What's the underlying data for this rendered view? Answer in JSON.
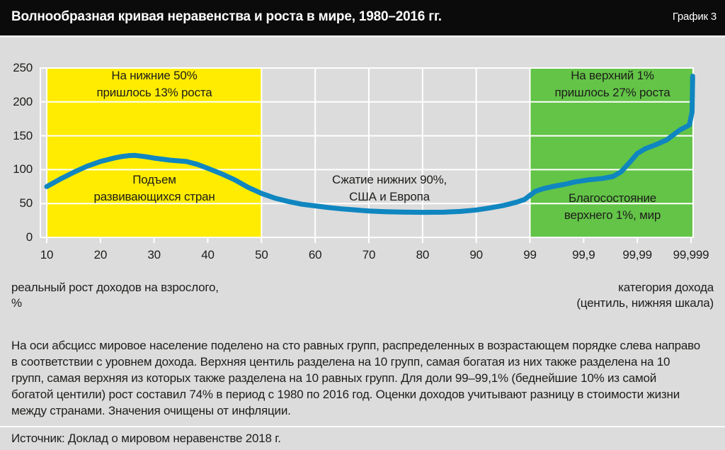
{
  "header": {
    "title": "Волнообразная кривая неравенства и роста в мире, 1980–2016 гг.",
    "corner_label": "График 3"
  },
  "chart_data": {
    "type": "line",
    "title": "Волнообразная кривая неравенства и роста в мире, 1980–2016 гг.",
    "xlabel": "категория дохода (центиль, нижняя шкала)",
    "ylabel": "реальный рост доходов на взрослого, %",
    "ylim": [
      0,
      250
    ],
    "grid": "on, white lines on gray",
    "legend": "none",
    "x_ticks": [
      "10",
      "20",
      "30",
      "40",
      "50",
      "60",
      "70",
      "80",
      "90",
      "99",
      "99,9",
      "99,99",
      "99,999"
    ],
    "y_ticks": [
      "0",
      "50",
      "100",
      "150",
      "200",
      "250"
    ],
    "v_grid_ticks": [
      0,
      4,
      5,
      6,
      7,
      8,
      9
    ],
    "regions": [
      {
        "name": "bottom-50-region",
        "color": "#ffec00",
        "from_tick": 0,
        "to_tick": 4
      },
      {
        "name": "top-1-region",
        "color": "#63c447",
        "from_tick": 9,
        "to_tick": 12.03
      }
    ],
    "series": [
      {
        "name": "реальный рост доходов, %",
        "color": "#0f86c0",
        "points": [
          [
            0,
            75
          ],
          [
            0.25,
            86
          ],
          [
            0.5,
            96
          ],
          [
            0.75,
            105
          ],
          [
            1,
            112
          ],
          [
            1.25,
            117
          ],
          [
            1.4,
            119.5
          ],
          [
            1.55,
            120.8
          ],
          [
            1.65,
            121
          ],
          [
            1.85,
            119
          ],
          [
            2,
            117
          ],
          [
            2.3,
            114
          ],
          [
            2.6,
            112
          ],
          [
            2.8,
            108
          ],
          [
            3,
            102
          ],
          [
            3.25,
            94
          ],
          [
            3.5,
            85
          ],
          [
            3.75,
            74
          ],
          [
            4,
            65
          ],
          [
            4.25,
            58
          ],
          [
            4.5,
            53
          ],
          [
            4.75,
            49
          ],
          [
            5,
            46.5
          ],
          [
            5.25,
            44
          ],
          [
            5.5,
            42
          ],
          [
            5.75,
            40.5
          ],
          [
            6,
            39
          ],
          [
            6.3,
            38
          ],
          [
            6.6,
            37.3
          ],
          [
            7,
            37
          ],
          [
            7.4,
            37.2
          ],
          [
            7.7,
            38.3
          ],
          [
            8,
            40.5
          ],
          [
            8.25,
            43.5
          ],
          [
            8.5,
            47
          ],
          [
            8.75,
            52
          ],
          [
            8.9,
            56
          ],
          [
            9,
            62
          ],
          [
            9.1,
            68
          ],
          [
            9.25,
            72
          ],
          [
            9.45,
            75.5
          ],
          [
            9.65,
            78.5
          ],
          [
            9.85,
            82
          ],
          [
            10.1,
            85
          ],
          [
            10.35,
            87
          ],
          [
            10.55,
            90
          ],
          [
            10.7,
            97
          ],
          [
            10.85,
            110
          ],
          [
            11,
            124
          ],
          [
            11.15,
            131
          ],
          [
            11.35,
            137
          ],
          [
            11.55,
            144
          ],
          [
            11.7,
            153
          ],
          [
            11.8,
            159
          ],
          [
            11.9,
            163
          ],
          [
            11.97,
            166
          ],
          [
            12.02,
            185
          ],
          [
            12.03,
            238
          ]
        ]
      }
    ],
    "annotations": [
      {
        "lines": [
          "На нижние 50%",
          "пришлось 13% роста"
        ]
      },
      {
        "lines": [
          "Подъем",
          "развивающихся стран"
        ]
      },
      {
        "lines": [
          "Сжатие нижних 90%,",
          "США и Европа"
        ]
      },
      {
        "lines": [
          "На верхний 1%",
          "пришлось 27% роста"
        ]
      },
      {
        "lines": [
          "Благосостояние",
          "верхнего 1%, мир"
        ]
      }
    ]
  },
  "axis_captions": {
    "left_line1": "реальный рост доходов на взрослого,",
    "left_line2": "%",
    "right_line1": "категория дохода",
    "right_line2": "(центиль, нижняя шкала)"
  },
  "footnote": {
    "lines": [
      "На оси абсцисс мировое население поделено на сто равных групп, распределенных в возрастающем порядке слева направо",
      "в соответствии с уровнем дохода. Верхняя центиль разделена на 10 групп, самая богатая из них также разделена на 10",
      "групп, самая верхняя из которых также разделена на 10 равных групп. Для доли 99–99,1% (беднейшие 10% из самой",
      "богатой центили) рост составил 74% в период с 1980 по 2016 год. Оценки доходов учитывают разницу в стоимости жизни",
      "между странами. Значения очищены от инфляции."
    ]
  },
  "source": "Источник: Доклад о мировом неравенстве 2018 г.",
  "colors": {
    "background": "#dcdcdc",
    "header_bg": "#0b0b0b",
    "header_text": "#ffffff",
    "grid": "#ffffff",
    "curve": "#0f86c0",
    "region_bottom50": "#ffec00",
    "region_top1": "#63c447",
    "text": "#1d1d1b"
  }
}
